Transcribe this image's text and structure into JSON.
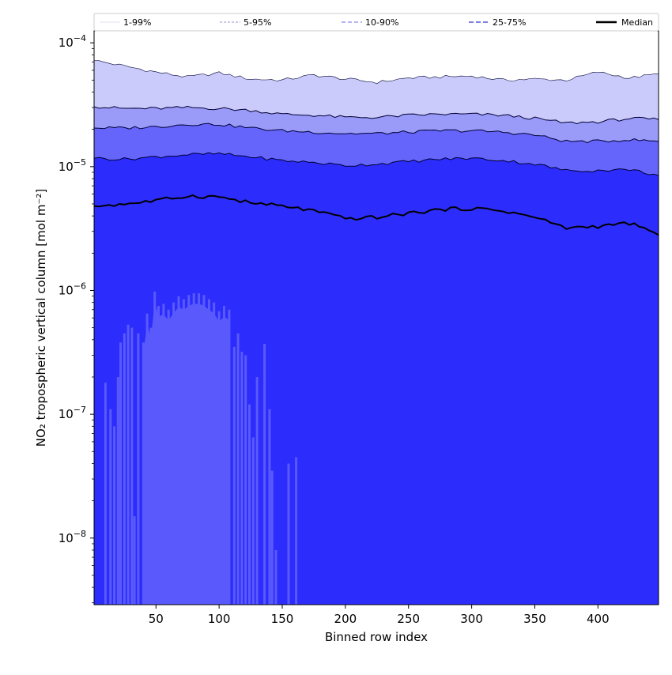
{
  "chart_data": {
    "type": "area",
    "title": "",
    "xlabel": "Binned row index",
    "ylabel": "NO₂ tropospheric vertical column [mol m⁻²]",
    "xlim": [
      1,
      448
    ],
    "ylim": [
      2.9e-09,
      0.000125
    ],
    "yscale": "log",
    "grid": false,
    "legend_position": "top",
    "x_ticks": [
      50,
      100,
      150,
      200,
      250,
      300,
      350,
      400
    ],
    "y_ticks": [
      {
        "value": 1e-08,
        "base": "10",
        "exp": "−8"
      },
      {
        "value": 1e-07,
        "base": "10",
        "exp": "−7"
      },
      {
        "value": 1e-06,
        "base": "10",
        "exp": "−6"
      },
      {
        "value": 1e-05,
        "base": "10",
        "exp": "−5"
      },
      {
        "value": 0.0001,
        "base": "10",
        "exp": "−4"
      }
    ],
    "legend": [
      "1-99%",
      "5-95%",
      "10-90%",
      "25-75%",
      "Median"
    ],
    "colors": {
      "band_1_99": "#cbcbfb",
      "band_5_95": "#9a9af9",
      "band_10_90": "#6565fc",
      "band_25_75": "#2c2cfc",
      "lower_5": "#5a5afc",
      "median": "#000000",
      "frame": "#000000"
    },
    "x": [
      1,
      25,
      50,
      75,
      100,
      125,
      150,
      175,
      200,
      225,
      250,
      275,
      300,
      325,
      350,
      375,
      400,
      425,
      448
    ],
    "series": [
      {
        "name": "Median",
        "values": [
          4.8e-06,
          5e-06,
          5.3e-06,
          5.8e-06,
          5.7e-06,
          5.1e-06,
          4.8e-06,
          4.4e-06,
          3.8e-06,
          3.9e-06,
          4.2e-06,
          4.5e-06,
          4.6e-06,
          4.4e-06,
          3.9e-06,
          3.2e-06,
          3.3e-06,
          3.5e-06,
          2.8e-06
        ]
      },
      {
        "name": "25-75%",
        "lower": [
          2.9e-09,
          2.9e-09,
          2.9e-09,
          2.9e-09,
          2.9e-09,
          2.9e-09,
          2.9e-09,
          2.9e-09,
          2.9e-09,
          2.9e-09,
          2.9e-09,
          2.9e-09,
          2.9e-09,
          2.9e-09,
          2.9e-09,
          2.9e-09,
          2.9e-09,
          2.9e-09,
          2.9e-09
        ],
        "upper": [
          1.17e-05,
          1.15e-05,
          1.2e-05,
          1.25e-05,
          1.27e-05,
          1.2e-05,
          1.12e-05,
          1.08e-05,
          1.02e-05,
          1.05e-05,
          1.1e-05,
          1.15e-05,
          1.17e-05,
          1.12e-05,
          1.05e-05,
          9.3e-06,
          9.3e-06,
          9.5e-06,
          8.5e-06
        ]
      },
      {
        "name": "10-90%",
        "lower": [
          2.9e-09,
          2.9e-09,
          2.9e-09,
          2.9e-09,
          2.9e-09,
          2.9e-09,
          2.9e-09,
          2.9e-09,
          2.9e-09,
          2.9e-09,
          2.9e-09,
          2.9e-09,
          2.9e-09,
          2.9e-09,
          2.9e-09,
          2.9e-09,
          2.9e-09,
          2.9e-09,
          2.9e-09
        ],
        "upper": [
          2.05e-05,
          2.05e-05,
          2.1e-05,
          2.2e-05,
          2.2e-05,
          2.05e-05,
          1.95e-05,
          1.9e-05,
          1.85e-05,
          1.85e-05,
          1.9e-05,
          1.95e-05,
          1.95e-05,
          1.9e-05,
          1.8e-05,
          1.6e-05,
          1.6e-05,
          1.65e-05,
          1.6e-05
        ]
      },
      {
        "name": "5-95%",
        "lower": [
          2.9e-09,
          2.9e-09,
          2.9e-09,
          2.9e-09,
          2.9e-09,
          2.9e-09,
          2.9e-09,
          2.9e-09,
          2.9e-09,
          2.9e-09,
          2.9e-09,
          2.9e-09,
          2.9e-09,
          2.9e-09,
          2.9e-09,
          2.9e-09,
          2.9e-09,
          2.9e-09,
          2.9e-09
        ],
        "upper": [
          3.05e-05,
          2.95e-05,
          2.95e-05,
          3e-05,
          2.95e-05,
          2.85e-05,
          2.65e-05,
          2.6e-05,
          2.5e-05,
          2.5e-05,
          2.6e-05,
          2.65e-05,
          2.65e-05,
          2.6e-05,
          2.45e-05,
          2.25e-05,
          2.3e-05,
          2.45e-05,
          2.4e-05
        ]
      },
      {
        "name": "1-99%",
        "lower": [
          2.9e-09,
          2.9e-09,
          2.9e-09,
          2.9e-09,
          2.9e-09,
          2.9e-09,
          2.9e-09,
          2.9e-09,
          2.9e-09,
          2.9e-09,
          2.9e-09,
          2.9e-09,
          2.9e-09,
          2.9e-09,
          2.9e-09,
          2.9e-09,
          2.9e-09,
          2.9e-09,
          2.9e-09
        ],
        "upper": [
          7.2e-05,
          6.5e-05,
          5.8e-05,
          5.3e-05,
          5.7e-05,
          5.1e-05,
          5e-05,
          5.5e-05,
          5.1e-05,
          4.8e-05,
          5.2e-05,
          5.3e-05,
          5.4e-05,
          5e-05,
          5.1e-05,
          5e-05,
          5.8e-05,
          5.2e-05,
          5.6e-05
        ]
      }
    ],
    "lower_5_percentile_spikes": [
      {
        "x": 10,
        "y": 1.8e-07
      },
      {
        "x": 14,
        "y": 1.1e-07
      },
      {
        "x": 17,
        "y": 8e-08
      },
      {
        "x": 20,
        "y": 2e-07
      },
      {
        "x": 22,
        "y": 3.8e-07
      },
      {
        "x": 25,
        "y": 4.5e-07
      },
      {
        "x": 28,
        "y": 5.3e-07
      },
      {
        "x": 31,
        "y": 5e-07
      },
      {
        "x": 33,
        "y": 1.5e-08
      },
      {
        "x": 36,
        "y": 4.5e-07
      },
      {
        "x": 40,
        "y": 3.8e-07
      },
      {
        "x": 43,
        "y": 6.5e-07
      },
      {
        "x": 46,
        "y": 5e-07
      },
      {
        "x": 49,
        "y": 9.8e-07
      },
      {
        "x": 52,
        "y": 7.5e-07
      },
      {
        "x": 56,
        "y": 7.8e-07
      },
      {
        "x": 60,
        "y": 7e-07
      },
      {
        "x": 64,
        "y": 8e-07
      },
      {
        "x": 68,
        "y": 9e-07
      },
      {
        "x": 72,
        "y": 8.5e-07
      },
      {
        "x": 76,
        "y": 9.2e-07
      },
      {
        "x": 80,
        "y": 9.5e-07
      },
      {
        "x": 84,
        "y": 9.5e-07
      },
      {
        "x": 88,
        "y": 9.2e-07
      },
      {
        "x": 92,
        "y": 8.5e-07
      },
      {
        "x": 96,
        "y": 8e-07
      },
      {
        "x": 100,
        "y": 6.8e-07
      },
      {
        "x": 104,
        "y": 7.5e-07
      },
      {
        "x": 108,
        "y": 7e-07
      },
      {
        "x": 112,
        "y": 3.5e-07
      },
      {
        "x": 115,
        "y": 4.5e-07
      },
      {
        "x": 118,
        "y": 3.2e-07
      },
      {
        "x": 121,
        "y": 3e-07
      },
      {
        "x": 124,
        "y": 1.2e-07
      },
      {
        "x": 127,
        "y": 6.5e-08
      },
      {
        "x": 130,
        "y": 2e-07
      },
      {
        "x": 136,
        "y": 3.7e-07
      },
      {
        "x": 140,
        "y": 1.1e-07
      },
      {
        "x": 142,
        "y": 3.5e-08
      },
      {
        "x": 145,
        "y": 8e-09
      },
      {
        "x": 155,
        "y": 4e-08
      },
      {
        "x": 161,
        "y": 4.5e-08
      }
    ]
  }
}
